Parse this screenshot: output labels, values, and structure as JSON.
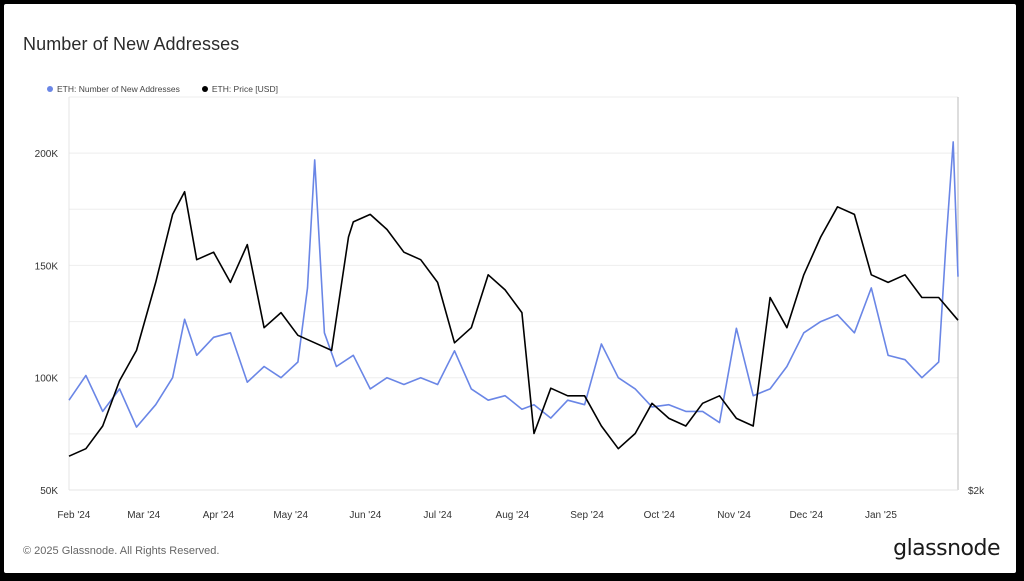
{
  "title": "Number of New Addresses",
  "footer": "© 2025 Glassnode. All Rights Reserved.",
  "brand": "glassnode",
  "colors": {
    "addresses": "#6a86e6",
    "price": "#000000",
    "grid": "#eeeeee"
  },
  "chart_data": {
    "type": "line",
    "title": "Number of New Addresses",
    "legend_position": "top-left",
    "grid": true,
    "x_ticks": [
      "Feb '24",
      "Mar '24",
      "Apr '24",
      "May '24",
      "Jun '24",
      "Jul '24",
      "Aug '24",
      "Sep '24",
      "Oct '24",
      "Nov '24",
      "Dec '24",
      "Jan '25"
    ],
    "y_left": {
      "ticks": [
        "50K",
        "100K",
        "150K",
        "200K"
      ],
      "ylim": [
        50000,
        225000
      ]
    },
    "y_right": {
      "ticks": [
        "$2k"
      ]
    },
    "x_range": [
      "2024-01-25",
      "2025-01-28"
    ],
    "series": [
      {
        "name": "ETH: Number of New Addresses",
        "axis": "left",
        "x": [
          "2024-01-25",
          "2024-02-01",
          "2024-02-08",
          "2024-02-15",
          "2024-02-22",
          "2024-03-01",
          "2024-03-08",
          "2024-03-13",
          "2024-03-18",
          "2024-03-25",
          "2024-04-01",
          "2024-04-08",
          "2024-04-15",
          "2024-04-22",
          "2024-04-29",
          "2024-05-03",
          "2024-05-06",
          "2024-05-10",
          "2024-05-15",
          "2024-05-22",
          "2024-05-29",
          "2024-06-05",
          "2024-06-12",
          "2024-06-19",
          "2024-06-26",
          "2024-07-03",
          "2024-07-10",
          "2024-07-17",
          "2024-07-24",
          "2024-07-31",
          "2024-08-05",
          "2024-08-12",
          "2024-08-19",
          "2024-08-26",
          "2024-09-02",
          "2024-09-09",
          "2024-09-16",
          "2024-09-23",
          "2024-09-30",
          "2024-10-07",
          "2024-10-14",
          "2024-10-21",
          "2024-10-28",
          "2024-11-04",
          "2024-11-11",
          "2024-11-18",
          "2024-11-25",
          "2024-12-02",
          "2024-12-09",
          "2024-12-16",
          "2024-12-23",
          "2024-12-30",
          "2025-01-06",
          "2025-01-13",
          "2025-01-20",
          "2025-01-23",
          "2025-01-26",
          "2025-01-28"
        ],
        "values": [
          90000,
          101000,
          85000,
          95000,
          78000,
          88000,
          100000,
          126000,
          110000,
          118000,
          120000,
          98000,
          105000,
          100000,
          107000,
          140000,
          197000,
          120000,
          105000,
          110000,
          95000,
          100000,
          97000,
          100000,
          97000,
          112000,
          95000,
          90000,
          92000,
          86000,
          88000,
          82000,
          90000,
          88000,
          115000,
          100000,
          95000,
          87000,
          88000,
          85000,
          85000,
          80000,
          122000,
          92000,
          95000,
          105000,
          120000,
          125000,
          128000,
          120000,
          140000,
          110000,
          108000,
          100000,
          107000,
          160000,
          205000,
          145000
        ]
      },
      {
        "name": "ETH: Price [USD]",
        "axis": "right",
        "x": [
          "2024-01-25",
          "2024-02-01",
          "2024-02-08",
          "2024-02-15",
          "2024-02-22",
          "2024-03-01",
          "2024-03-08",
          "2024-03-13",
          "2024-03-18",
          "2024-03-25",
          "2024-04-01",
          "2024-04-08",
          "2024-04-15",
          "2024-04-22",
          "2024-04-29",
          "2024-05-06",
          "2024-05-13",
          "2024-05-20",
          "2024-05-22",
          "2024-05-29",
          "2024-06-05",
          "2024-06-12",
          "2024-06-19",
          "2024-06-26",
          "2024-07-03",
          "2024-07-10",
          "2024-07-17",
          "2024-07-24",
          "2024-07-31",
          "2024-08-05",
          "2024-08-12",
          "2024-08-19",
          "2024-08-26",
          "2024-09-02",
          "2024-09-09",
          "2024-09-16",
          "2024-09-23",
          "2024-09-30",
          "2024-10-07",
          "2024-10-14",
          "2024-10-21",
          "2024-10-28",
          "2024-11-04",
          "2024-11-11",
          "2024-11-18",
          "2024-11-25",
          "2024-12-02",
          "2024-12-09",
          "2024-12-16",
          "2024-12-23",
          "2024-12-30",
          "2025-01-06",
          "2025-01-13",
          "2025-01-20",
          "2025-01-28"
        ],
        "values": [
          2250,
          2300,
          2450,
          2750,
          2950,
          3400,
          3850,
          4000,
          3550,
          3600,
          3400,
          3650,
          3100,
          3200,
          3050,
          3000,
          2950,
          3700,
          3800,
          3850,
          3750,
          3600,
          3550,
          3400,
          3000,
          3100,
          3450,
          3350,
          3200,
          2400,
          2700,
          2650,
          2650,
          2450,
          2300,
          2400,
          2600,
          2500,
          2450,
          2600,
          2650,
          2500,
          2450,
          3300,
          3100,
          3450,
          3700,
          3900,
          3850,
          3450,
          3400,
          3450,
          3300,
          3300,
          3150
        ]
      }
    ]
  }
}
